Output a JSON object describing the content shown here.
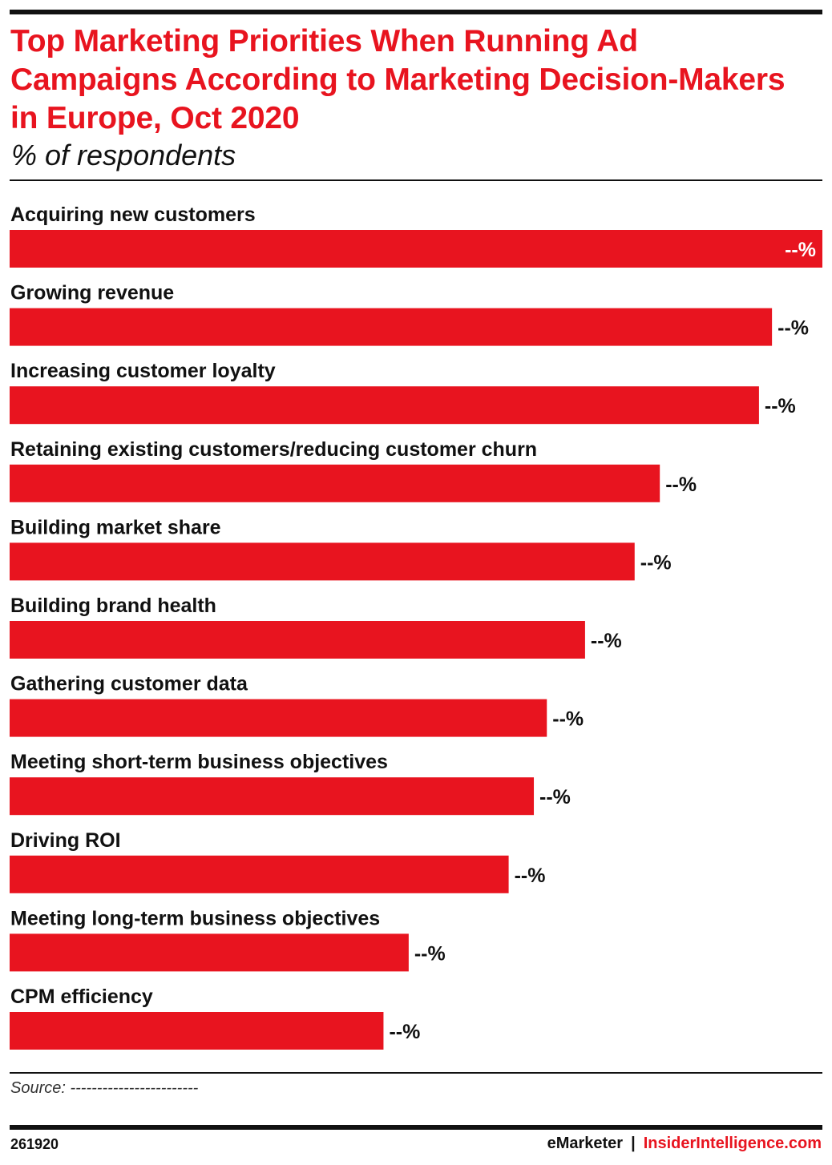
{
  "title": "Top Marketing Priorities When Running Ad Campaigns According to Marketing Decision-Makers in Europe, Oct 2020",
  "subtitle": "% of respondents",
  "source": "Source: ------------------------",
  "chart_id": "261920",
  "brand": {
    "emarketer": "eMarketer",
    "separator": "|",
    "insider": "InsiderIntelligence.com"
  },
  "colors": {
    "bar": "#e8141f",
    "title": "#e8141f",
    "label_inside": "#ffffff",
    "label_outside": "#111111"
  },
  "chart_data": {
    "type": "bar",
    "orientation": "horizontal",
    "title": "Top Marketing Priorities When Running Ad Campaigns According to Marketing Decision-Makers in Europe, Oct 2020",
    "subtitle": "% of respondents",
    "categories": [
      "Acquiring new customers",
      "Growing revenue",
      "Increasing customer loyalty",
      "Retaining existing customers/reducing customer churn",
      "Building market share",
      "Building brand health",
      "Gathering customer data",
      "Meeting short-term business objectives",
      "Driving ROI",
      "Meeting long-term business objectives",
      "CPM efficiency"
    ],
    "values": [
      100,
      93.8,
      92.2,
      80,
      76.9,
      70.8,
      66.1,
      64.5,
      61.4,
      49.1,
      46
    ],
    "value_labels": [
      "--%",
      "--%",
      "--%",
      "--%",
      "--%",
      "--%",
      "--%",
      "--%",
      "--%",
      "--%",
      "--%"
    ],
    "xlim": [
      0,
      100
    ],
    "grid": false,
    "legend": "none"
  }
}
